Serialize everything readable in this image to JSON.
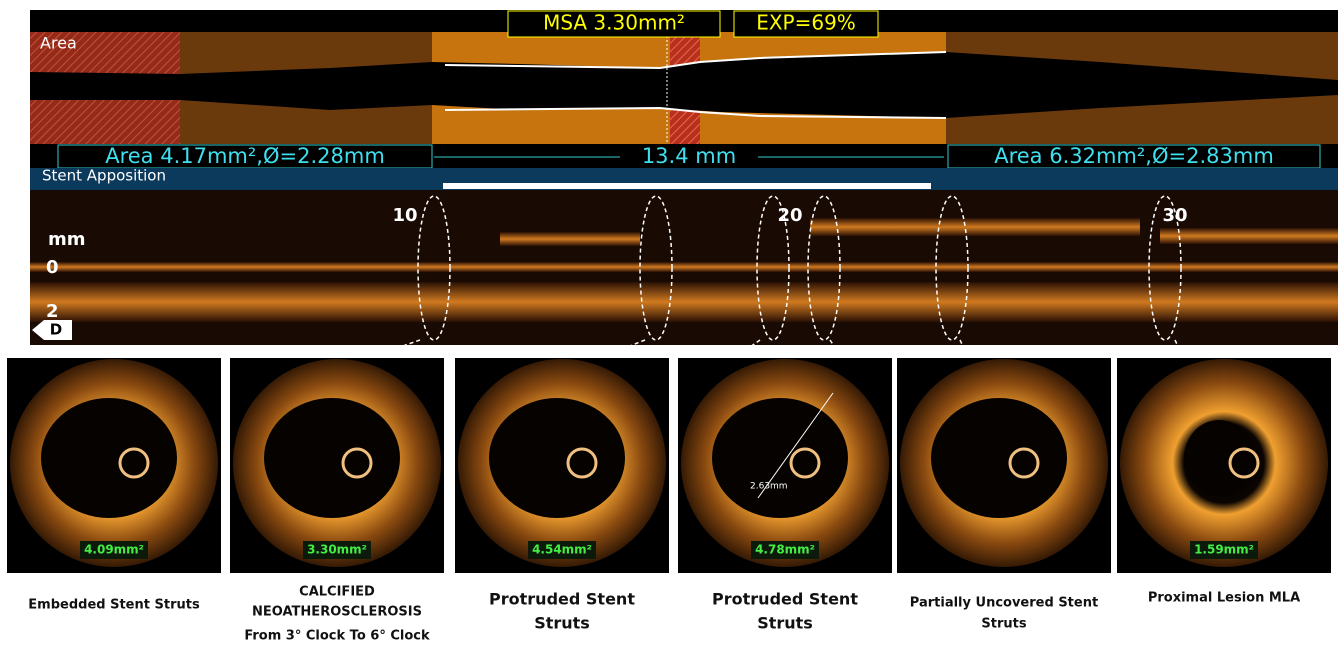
{
  "area_strip": {
    "label": "Area",
    "msa": "MSA 3.30mm²",
    "expansion": "EXP=69%"
  },
  "measure_bar": {
    "distal": "Area 4.17mm²,Ø=2.28mm",
    "length": "13.4 mm",
    "proximal": "Area 6.32mm²,Ø=2.83mm"
  },
  "apposition_bar": {
    "label": "Stent Apposition"
  },
  "longitudinal": {
    "axis_unit": "mm",
    "ticks": [
      "10",
      "20",
      "30"
    ],
    "depth_labels": [
      "0",
      "2"
    ],
    "direction": "D"
  },
  "panels": [
    {
      "area": "4.09mm²",
      "caption": [
        "Embedded Stent Struts"
      ]
    },
    {
      "area": "3.30mm²",
      "caption": [
        "CALCIFIED",
        "NEOATHEROSCLEROSIS",
        "From 3° Clock To 6° Clock"
      ]
    },
    {
      "area": "4.54mm²",
      "caption": [
        "Protruded Stent",
        "Struts"
      ]
    },
    {
      "area": "4.78mm²",
      "measurement": "2.63mm",
      "caption": [
        "Protruded Stent",
        "Struts"
      ]
    },
    {
      "area": "",
      "caption": [
        "Partially Uncovered Stent",
        "Struts"
      ]
    },
    {
      "area": "1.59mm²",
      "caption": [
        "Proximal Lesion MLA"
      ]
    }
  ]
}
